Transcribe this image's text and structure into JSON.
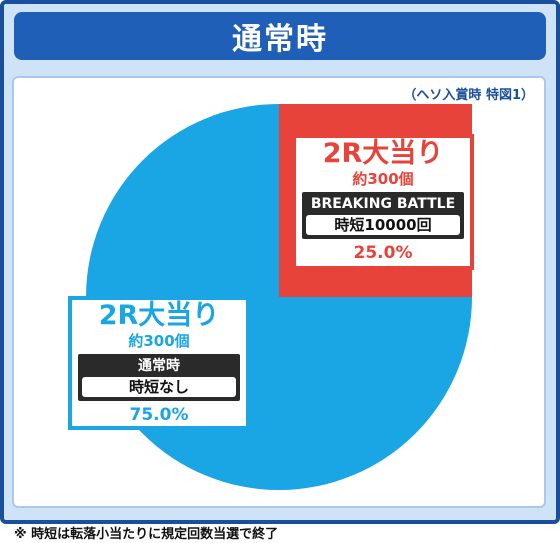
{
  "header": {
    "title": "通常時"
  },
  "subcaption": "（ヘソ入賞時 特図1）",
  "colors": {
    "red": "#e8433a",
    "blue": "#1aa6e4",
    "header": "#1f5fb8"
  },
  "chart_data": {
    "type": "pie",
    "slices": [
      {
        "label": "2R大当り",
        "sub": "約300個",
        "tag": "BREAKING BATTLE",
        "detail": "時短10000回",
        "percent_label": "25.0%",
        "value": 25.0,
        "color": "#e8433a"
      },
      {
        "label": "2R大当り",
        "sub": "約300個",
        "tag": "通常時",
        "detail": "時短なし",
        "percent_label": "75.0%",
        "value": 75.0,
        "color": "#1aa6e4"
      }
    ]
  },
  "footnote": "※ 時短は転落小当たりに規定回数当選で終了"
}
